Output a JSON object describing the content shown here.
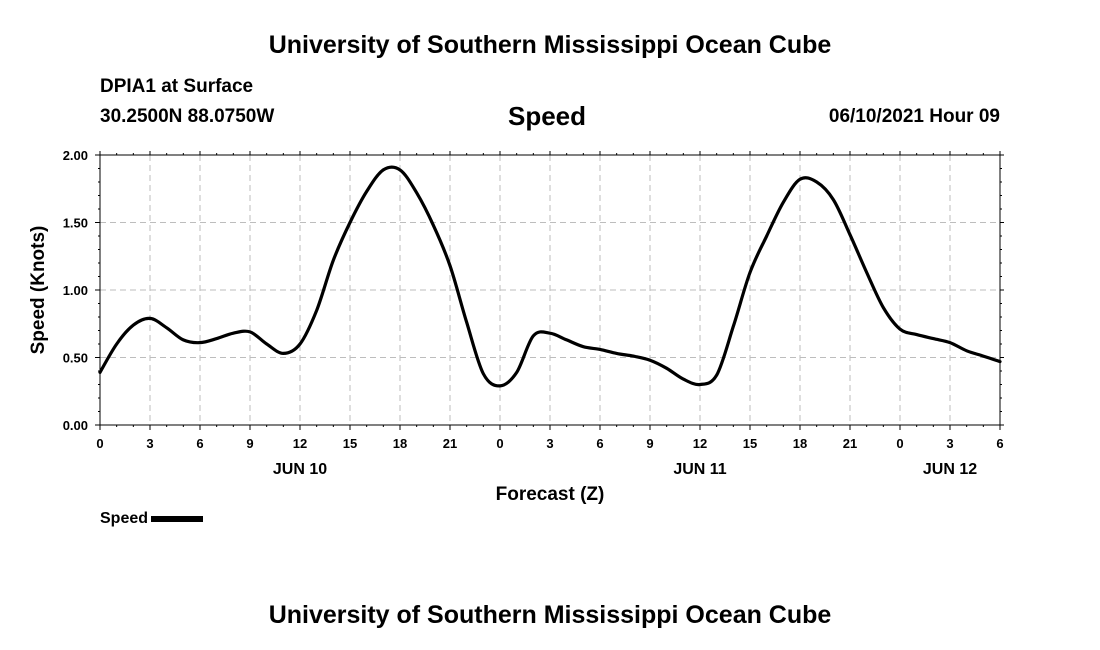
{
  "header": {
    "title": "University of Southern Mississippi Ocean Cube",
    "station": "DPIA1 at Surface",
    "coords": "30.2500N  88.0750W",
    "variable": "Speed",
    "datetime": "06/10/2021 Hour 09"
  },
  "footer": {
    "title": "University of Southern Mississippi Ocean Cube"
  },
  "legend": {
    "label": "Speed",
    "color": "#000000"
  },
  "chart_data": {
    "type": "line",
    "title": "Speed",
    "xlabel": "Forecast (Z)",
    "ylabel": "Speed (Knots)",
    "x_unit": "forecast hour from 00Z Jun 10",
    "xlim": [
      0,
      54
    ],
    "ylim": [
      0,
      2.0
    ],
    "x_ticks": [
      0,
      3,
      6,
      9,
      12,
      15,
      18,
      21,
      24,
      27,
      30,
      33,
      36,
      39,
      42,
      45,
      48,
      51,
      54
    ],
    "x_tick_labels": [
      "0",
      "3",
      "6",
      "9",
      "12",
      "15",
      "18",
      "21",
      "0",
      "3",
      "6",
      "9",
      "12",
      "15",
      "18",
      "21",
      "0",
      "3",
      "6"
    ],
    "y_ticks": [
      0,
      0.5,
      1.0,
      1.5,
      2.0
    ],
    "y_tick_labels": [
      "0.00",
      "0.50",
      "1.00",
      "1.50",
      "2.00"
    ],
    "day_labels": [
      {
        "x": 12,
        "label": "JUN 10"
      },
      {
        "x": 36,
        "label": "JUN 11"
      },
      {
        "x": 51,
        "label": "JUN 12"
      }
    ],
    "grid": true,
    "series": [
      {
        "name": "Speed",
        "color": "#000000",
        "x": [
          0,
          1,
          2,
          3,
          4,
          5,
          6,
          7,
          8,
          9,
          10,
          11,
          12,
          13,
          14,
          15,
          16,
          17,
          18,
          19,
          20,
          21,
          22,
          23,
          24,
          25,
          26,
          27,
          28,
          29,
          30,
          31,
          32,
          33,
          34,
          35,
          36,
          37,
          38,
          39,
          40,
          41,
          42,
          43,
          44,
          45,
          46,
          47,
          48,
          49,
          50,
          51,
          52,
          53,
          54
        ],
        "values": [
          0.39,
          0.6,
          0.74,
          0.79,
          0.72,
          0.63,
          0.61,
          0.64,
          0.68,
          0.69,
          0.6,
          0.53,
          0.6,
          0.85,
          1.22,
          1.5,
          1.73,
          1.89,
          1.89,
          1.72,
          1.48,
          1.18,
          0.76,
          0.38,
          0.29,
          0.39,
          0.66,
          0.68,
          0.63,
          0.58,
          0.56,
          0.53,
          0.51,
          0.48,
          0.42,
          0.34,
          0.3,
          0.37,
          0.73,
          1.13,
          1.4,
          1.65,
          1.82,
          1.8,
          1.67,
          1.41,
          1.13,
          0.87,
          0.71,
          0.67,
          0.64,
          0.61,
          0.55,
          0.51,
          0.47
        ]
      }
    ]
  }
}
